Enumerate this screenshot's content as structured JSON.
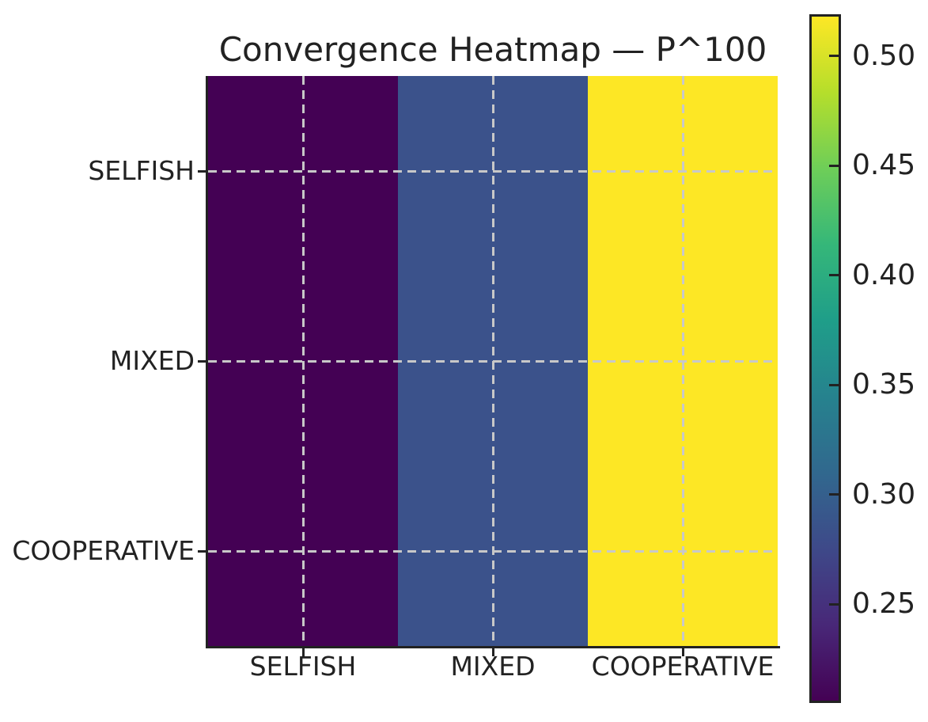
{
  "figure": {
    "title": "Convergence Heatmap — P^100",
    "background_color": "#ffffff",
    "text_color": "#222222",
    "spine_color": "#222222",
    "grid_color": "#c8c8c8"
  },
  "chart_data": {
    "type": "heatmap",
    "title": "Convergence Heatmap — P^100",
    "row_labels": [
      "SELFISH",
      "MIXED",
      "COOPERATIVE"
    ],
    "col_labels": [
      "SELFISH",
      "MIXED",
      "COOPERATIVE"
    ],
    "matrix": [
      [
        0.205,
        0.276,
        0.519
      ],
      [
        0.205,
        0.276,
        0.519
      ],
      [
        0.205,
        0.276,
        0.519
      ]
    ],
    "cell_colors": [
      [
        "#440154",
        "#3b528b",
        "#fde725"
      ],
      [
        "#440154",
        "#3b528b",
        "#fde725"
      ],
      [
        "#440154",
        "#3b528b",
        "#fde725"
      ]
    ],
    "colormap": "viridis",
    "vmin": 0.205,
    "vmax": 0.519,
    "grid": "dashed lines at cell centers",
    "legend_position": "colorbar-right",
    "colorbar": {
      "ticks": [
        0.5,
        0.45,
        0.4,
        0.35,
        0.3,
        0.25
      ],
      "tick_labels": [
        "0.50",
        "0.45",
        "0.40",
        "0.35",
        "0.30",
        "0.25"
      ],
      "gradient_stops_bottom_to_top": [
        "#440154",
        "#482878",
        "#3e4989",
        "#31688e",
        "#26828e",
        "#1f9e89",
        "#35b779",
        "#6ece58",
        "#b5de2b",
        "#fde725"
      ]
    }
  }
}
